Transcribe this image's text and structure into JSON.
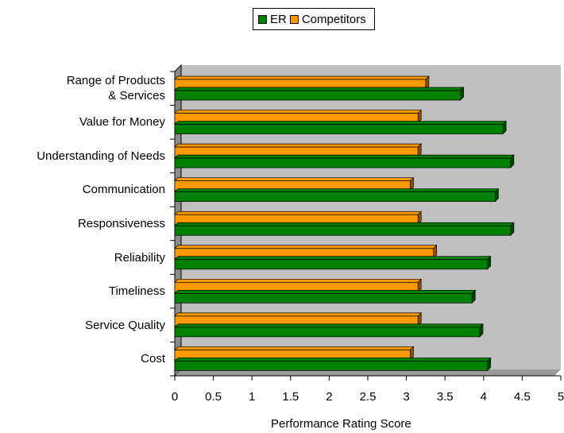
{
  "chart_data": {
    "type": "bar",
    "orientation": "horizontal",
    "style": "3d",
    "categories": [
      "Range of Products\n& Services",
      "Value for Money",
      "Understanding of Needs",
      "Communication",
      "Responsiveness",
      "Reliability",
      "Timeliness",
      "Service Quality",
      "Cost"
    ],
    "series": [
      {
        "name": "Competitors",
        "color": "#ff9900",
        "values": [
          3.25,
          3.15,
          3.15,
          3.05,
          3.15,
          3.35,
          3.15,
          3.15,
          3.05
        ]
      },
      {
        "name": "ER",
        "color": "#008000",
        "values": [
          3.7,
          4.25,
          4.35,
          4.15,
          4.35,
          4.05,
          3.85,
          3.95,
          4.05
        ]
      }
    ],
    "xlabel": "Performance Rating Score",
    "xlim": [
      0,
      5
    ],
    "ticks": [
      "0",
      "0.5",
      "1",
      "1.5",
      "2",
      "2.5",
      "3",
      "3.5",
      "4",
      "4.5",
      "5"
    ],
    "legend": {
      "position": "top",
      "order": [
        "ER",
        "Competitors"
      ]
    },
    "plot_background": "#c0c0c0"
  }
}
